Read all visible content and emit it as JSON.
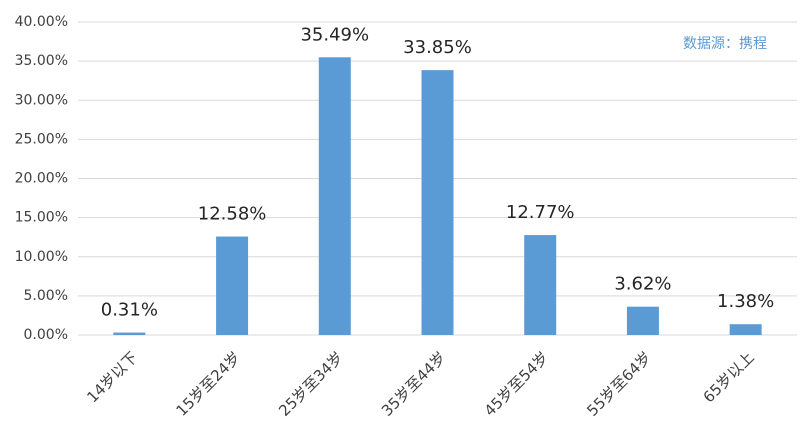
{
  "chart_data": {
    "type": "bar",
    "annotation": "数据源：携程",
    "categories": [
      "14岁以下",
      "15岁至24岁",
      "25岁至34岁",
      "35岁至44岁",
      "45岁至54岁",
      "55岁至64岁",
      "65岁以上"
    ],
    "values": [
      0.31,
      12.58,
      35.49,
      33.85,
      12.77,
      3.62,
      1.38
    ],
    "value_labels": [
      "0.31%",
      "12.58%",
      "35.49%",
      "33.85%",
      "12.77%",
      "3.62%",
      "1.38%"
    ],
    "color": "#5b9bd5",
    "ylim": [
      0,
      40
    ],
    "yticks": [
      {
        "value": 0,
        "label": "0.00%"
      },
      {
        "value": 5,
        "label": "5.00%"
      },
      {
        "value": 10,
        "label": "10.00%"
      },
      {
        "value": 15,
        "label": "15.00%"
      },
      {
        "value": 20,
        "label": "20.00%"
      },
      {
        "value": 25,
        "label": "25.00%"
      },
      {
        "value": 30,
        "label": "30.00%"
      },
      {
        "value": 35,
        "label": "35.00%"
      },
      {
        "value": 40,
        "label": "40.00%"
      }
    ],
    "grid": true
  }
}
